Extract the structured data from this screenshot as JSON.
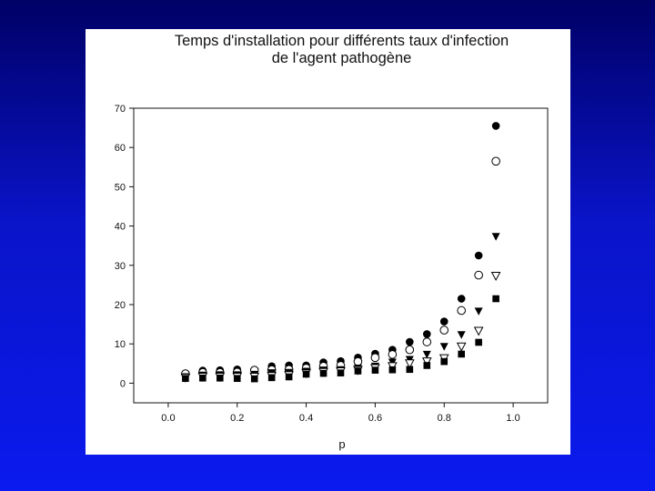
{
  "chart_data": {
    "type": "scatter",
    "title": [
      "Temps d'installation pour différents taux d'infection",
      "de l'agent pathogène"
    ],
    "xlabel": "p",
    "ylabel": "",
    "xlim": [
      -0.1,
      1.1
    ],
    "ylim": [
      -5,
      70
    ],
    "xticks": [
      "0.0",
      "0.2",
      "0.4",
      "0.6",
      "0.8",
      "1.0"
    ],
    "yticks": [
      "0",
      "10",
      "20",
      "30",
      "40",
      "50",
      "60",
      "70"
    ],
    "grid": false,
    "series": [
      {
        "marker": "filled-circle",
        "x": [
          0.05,
          0.1,
          0.15,
          0.2,
          0.25,
          0.3,
          0.35,
          0.4,
          0.45,
          0.5,
          0.55,
          0.6,
          0.65,
          0.7,
          0.75,
          0.8,
          0.85,
          0.9,
          0.95
        ],
        "y": [
          2.5,
          3.2,
          3.3,
          3.5,
          3.4,
          4.3,
          4.5,
          4.5,
          5.3,
          5.6,
          6.5,
          7.5,
          8.5,
          10.5,
          12.5,
          15.7,
          21.5,
          32.5,
          65.5
        ]
      },
      {
        "marker": "open-circle",
        "x": [
          0.05,
          0.1,
          0.15,
          0.2,
          0.25,
          0.3,
          0.35,
          0.4,
          0.45,
          0.5,
          0.55,
          0.6,
          0.65,
          0.7,
          0.75,
          0.8,
          0.85,
          0.9,
          0.95
        ],
        "y": [
          2.4,
          2.7,
          2.7,
          2.8,
          3.3,
          3.4,
          3.5,
          3.8,
          4.3,
          4.5,
          5.5,
          6.5,
          7.3,
          8.5,
          10.5,
          13.5,
          18.5,
          27.5,
          56.5
        ]
      },
      {
        "marker": "filled-triangle-down",
        "x": [
          0.05,
          0.1,
          0.15,
          0.2,
          0.25,
          0.3,
          0.35,
          0.4,
          0.45,
          0.5,
          0.55,
          0.6,
          0.65,
          0.7,
          0.75,
          0.8,
          0.85,
          0.9,
          0.95
        ],
        "y": [
          1.6,
          2.0,
          2.1,
          2.1,
          2.2,
          2.6,
          2.7,
          3.0,
          3.3,
          3.4,
          3.8,
          4.3,
          5.3,
          6.0,
          7.3,
          9.3,
          12.3,
          18.3,
          37.3
        ]
      },
      {
        "marker": "open-triangle-down",
        "x": [
          0.05,
          0.1,
          0.15,
          0.2,
          0.25,
          0.3,
          0.35,
          0.4,
          0.45,
          0.5,
          0.55,
          0.6,
          0.65,
          0.7,
          0.75,
          0.8,
          0.85,
          0.9,
          0.95
        ],
        "y": [
          1.4,
          1.6,
          1.6,
          1.6,
          1.6,
          1.8,
          2.0,
          2.5,
          2.8,
          3.0,
          3.3,
          3.8,
          4.3,
          5.0,
          5.5,
          6.3,
          9.3,
          13.3,
          27.3
        ]
      },
      {
        "marker": "filled-square",
        "x": [
          0.05,
          0.1,
          0.15,
          0.2,
          0.25,
          0.3,
          0.35,
          0.4,
          0.45,
          0.5,
          0.55,
          0.6,
          0.65,
          0.7,
          0.75,
          0.8,
          0.85,
          0.9,
          0.95
        ],
        "y": [
          1.2,
          1.3,
          1.3,
          1.2,
          1.1,
          1.4,
          1.6,
          2.3,
          2.5,
          2.6,
          3.1,
          3.3,
          3.4,
          3.5,
          4.5,
          5.5,
          7.4,
          10.4,
          21.5
        ]
      }
    ]
  }
}
